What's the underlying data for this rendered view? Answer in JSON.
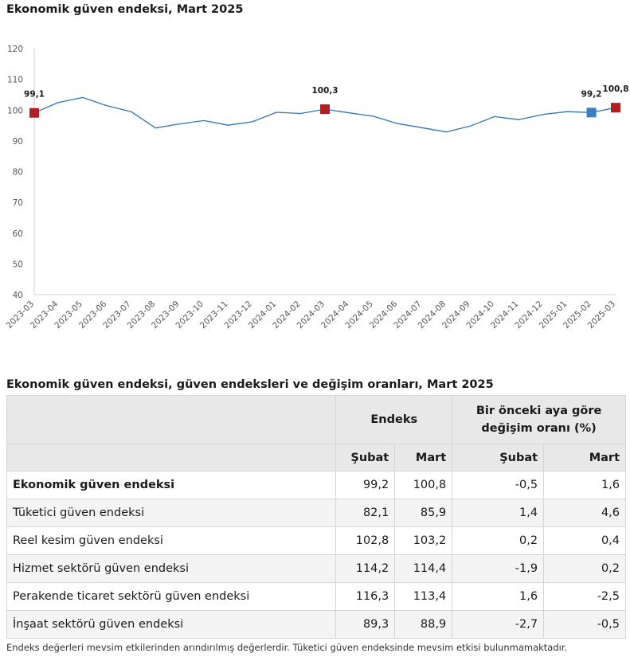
{
  "chart_title": "Ekonomik güven endeksi, Mart 2025",
  "chart_data": {
    "type": "line",
    "title": "Ekonomik güven endeksi, Mart 2025",
    "xlabel": "",
    "ylabel": "",
    "ylim": [
      40,
      120
    ],
    "yticks": [
      40,
      50,
      60,
      70,
      80,
      90,
      100,
      110,
      120
    ],
    "grid": false,
    "categories": [
      "2023-03",
      "2023-04",
      "2023-05",
      "2023-06",
      "2023-07",
      "2023-08",
      "2023-09",
      "2023-10",
      "2023-11",
      "2023-12",
      "2024-01",
      "2024-02",
      "2024-03",
      "2024-04",
      "2024-05",
      "2024-06",
      "2024-07",
      "2024-08",
      "2024-09",
      "2024-10",
      "2024-11",
      "2024-12",
      "2025-01",
      "2025-02",
      "2025-03"
    ],
    "series": [
      {
        "values": [
          99.1,
          102.5,
          104.1,
          101.4,
          99.5,
          94.2,
          95.5,
          96.6,
          95.1,
          96.2,
          99.3,
          98.9,
          100.3,
          99.1,
          98.0,
          95.6,
          94.3,
          92.9,
          94.8,
          97.9,
          96.9,
          98.6,
          99.5,
          99.2,
          100.8
        ],
        "color": "#2f76b5"
      }
    ],
    "markers": [
      {
        "index": 0,
        "label": "99,1",
        "color": "#b01f24"
      },
      {
        "index": 12,
        "label": "100,3",
        "color": "#b01f24"
      },
      {
        "index": 23,
        "label": "99,2",
        "color": "#3a7fc1"
      },
      {
        "index": 24,
        "label": "100,8",
        "color": "#b01f24"
      }
    ]
  },
  "table": {
    "title": "Ekonomik güven endeksi, güven endeksleri ve değişim oranları, Mart 2025",
    "group_endeks": "Endeks",
    "group_change": "Bir önceki aya göre değişim oranı (%)",
    "subheaders": [
      "Şubat",
      "Mart",
      "Şubat",
      "Mart"
    ],
    "rows": [
      {
        "label": "Ekonomik güven endeksi",
        "values": [
          "99,2",
          "100,8",
          "-0,5",
          "1,6"
        ]
      },
      {
        "label": "Tüketici güven endeksi",
        "values": [
          "82,1",
          "85,9",
          "1,4",
          "4,6"
        ]
      },
      {
        "label": "Reel kesim güven endeksi",
        "values": [
          "102,8",
          "103,2",
          "0,2",
          "0,4"
        ]
      },
      {
        "label": "Hizmet sektörü güven endeksi",
        "values": [
          "114,2",
          "114,4",
          "-1,9",
          "0,2"
        ]
      },
      {
        "label": "Perakende ticaret sektörü güven endeksi",
        "values": [
          "116,3",
          "113,4",
          "1,6",
          "-2,5"
        ]
      },
      {
        "label": "İnşaat sektörü güven endeksi",
        "values": [
          "89,3",
          "88,9",
          "-2,7",
          "-0,5"
        ]
      }
    ]
  },
  "footnote": "Endeks değerleri mevsim etkilerinden arındırılmış değerlerdir. Tüketici güven endeksinde mevsim etkisi bulunmamaktadır."
}
